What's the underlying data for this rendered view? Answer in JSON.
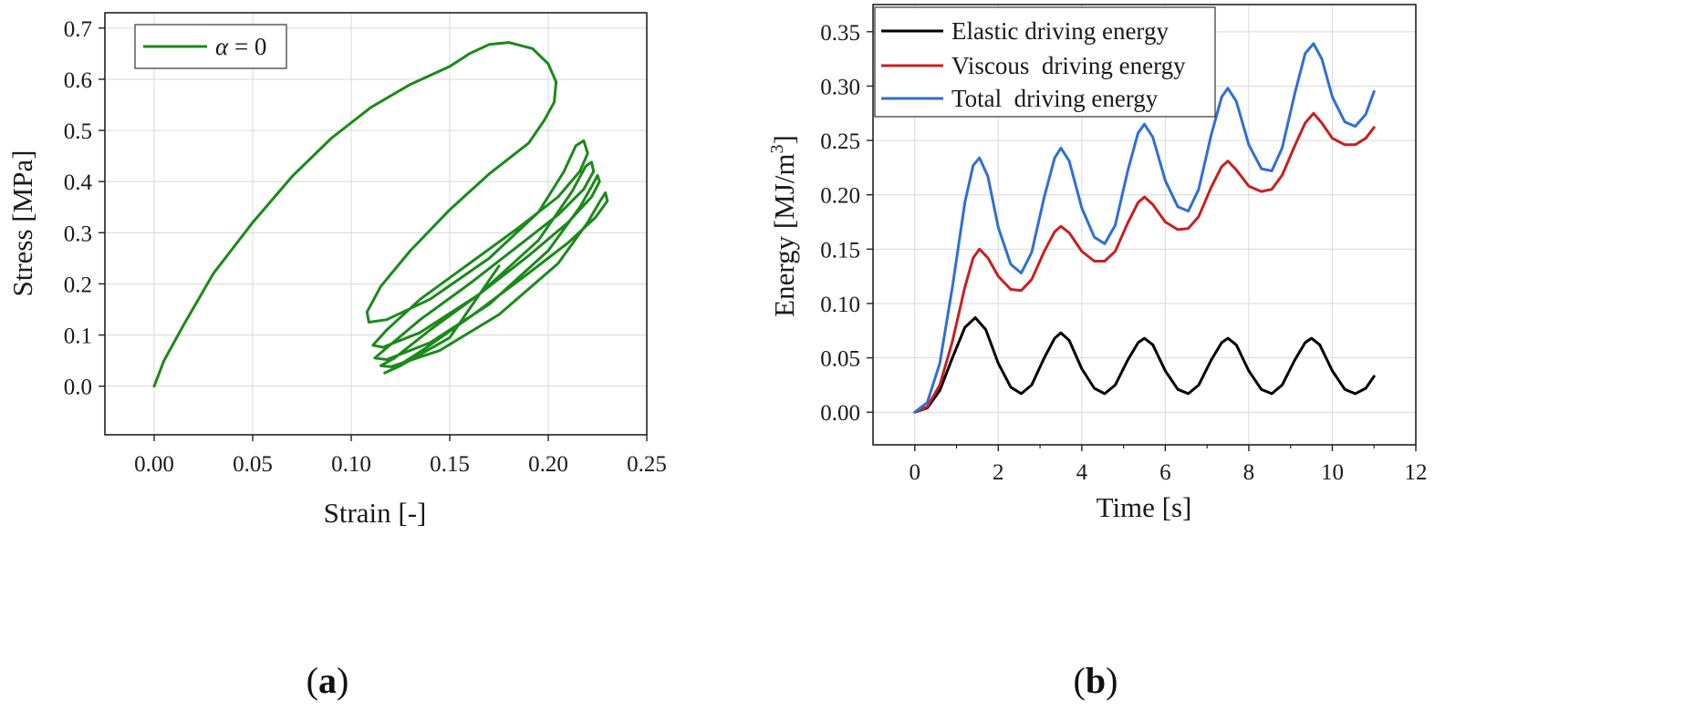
{
  "panel_a": {
    "label_open": "(",
    "label_letter": "a",
    "label_close": ")"
  },
  "panel_b": {
    "label_open": "(",
    "label_letter": "b",
    "label_close": ")"
  },
  "chart_data": [
    {
      "type": "line",
      "xlabel": "Strain [-]",
      "ylabel": "Stress [MPa]",
      "xlim": [
        -0.025,
        0.25
      ],
      "ylim": [
        -0.095,
        0.73
      ],
      "xticks": [
        0.0,
        0.05,
        0.1,
        0.15,
        0.2,
        0.25
      ],
      "xtick_labels": [
        "0.00",
        "0.05",
        "0.10",
        "0.15",
        "0.20",
        "0.25"
      ],
      "yticks": [
        0.0,
        0.1,
        0.2,
        0.3,
        0.4,
        0.5,
        0.6,
        0.7
      ],
      "ytick_labels": [
        "0.0",
        "0.1",
        "0.2",
        "0.3",
        "0.4",
        "0.5",
        "0.6",
        "0.7"
      ],
      "grid": true,
      "legend_position": "top-left",
      "series": [
        {
          "name": "α = 0",
          "legend_symbol": "α",
          "legend_rest": " = 0",
          "color": "#1a8a1a",
          "points": [
            [
              0.0,
              0.0
            ],
            [
              0.005,
              0.05
            ],
            [
              0.015,
              0.12
            ],
            [
              0.03,
              0.22
            ],
            [
              0.05,
              0.32
            ],
            [
              0.07,
              0.41
            ],
            [
              0.09,
              0.485
            ],
            [
              0.11,
              0.545
            ],
            [
              0.13,
              0.59
            ],
            [
              0.15,
              0.625
            ],
            [
              0.16,
              0.65
            ],
            [
              0.17,
              0.668
            ],
            [
              0.18,
              0.672
            ],
            [
              0.192,
              0.66
            ],
            [
              0.2,
              0.63
            ],
            [
              0.204,
              0.595
            ],
            [
              0.203,
              0.555
            ],
            [
              0.198,
              0.52
            ],
            [
              0.19,
              0.475
            ],
            [
              0.17,
              0.415
            ],
            [
              0.15,
              0.345
            ],
            [
              0.13,
              0.265
            ],
            [
              0.115,
              0.195
            ],
            [
              0.108,
              0.145
            ],
            [
              0.109,
              0.125
            ],
            [
              0.118,
              0.13
            ],
            [
              0.14,
              0.17
            ],
            [
              0.17,
              0.25
            ],
            [
              0.195,
              0.34
            ],
            [
              0.208,
              0.42
            ],
            [
              0.214,
              0.47
            ],
            [
              0.218,
              0.48
            ],
            [
              0.22,
              0.455
            ],
            [
              0.216,
              0.42
            ],
            [
              0.205,
              0.37
            ],
            [
              0.185,
              0.31
            ],
            [
              0.16,
              0.24
            ],
            [
              0.135,
              0.17
            ],
            [
              0.118,
              0.11
            ],
            [
              0.111,
              0.08
            ],
            [
              0.116,
              0.076
            ],
            [
              0.135,
              0.105
            ],
            [
              0.165,
              0.18
            ],
            [
              0.195,
              0.285
            ],
            [
              0.212,
              0.38
            ],
            [
              0.219,
              0.43
            ],
            [
              0.222,
              0.438
            ],
            [
              0.223,
              0.42
            ],
            [
              0.218,
              0.385
            ],
            [
              0.205,
              0.335
            ],
            [
              0.185,
              0.275
            ],
            [
              0.16,
              0.2
            ],
            [
              0.135,
              0.13
            ],
            [
              0.118,
              0.075
            ],
            [
              0.112,
              0.055
            ],
            [
              0.118,
              0.052
            ],
            [
              0.14,
              0.085
            ],
            [
              0.17,
              0.16
            ],
            [
              0.2,
              0.265
            ],
            [
              0.216,
              0.35
            ],
            [
              0.222,
              0.39
            ],
            [
              0.225,
              0.412
            ],
            [
              0.226,
              0.4
            ],
            [
              0.222,
              0.37
            ],
            [
              0.21,
              0.32
            ],
            [
              0.19,
              0.255
            ],
            [
              0.165,
              0.18
            ],
            [
              0.14,
              0.11
            ],
            [
              0.122,
              0.055
            ],
            [
              0.115,
              0.04
            ],
            [
              0.12,
              0.038
            ],
            [
              0.145,
              0.07
            ],
            [
              0.175,
              0.14
            ],
            [
              0.205,
              0.24
            ],
            [
              0.22,
              0.32
            ],
            [
              0.226,
              0.36
            ],
            [
              0.229,
              0.378
            ],
            [
              0.23,
              0.362
            ],
            [
              0.224,
              0.33
            ],
            [
              0.21,
              0.28
            ],
            [
              0.188,
              0.215
            ],
            [
              0.162,
              0.14
            ],
            [
              0.138,
              0.075
            ],
            [
              0.122,
              0.035
            ],
            [
              0.117,
              0.026
            ],
            [
              0.125,
              0.04
            ],
            [
              0.15,
              0.095
            ],
            [
              0.175,
              0.235
            ]
          ]
        }
      ]
    },
    {
      "type": "line",
      "xlabel": "Time [s]",
      "ylabel": "Energy [MJ/m³]",
      "ylabel_main": "Energy [MJ/m",
      "ylabel_sup": "3",
      "ylabel_end": "]",
      "xlim": [
        -1,
        12
      ],
      "ylim": [
        -0.03,
        0.375
      ],
      "xticks": [
        0,
        2,
        4,
        6,
        8,
        10,
        12
      ],
      "xtick_labels": [
        "0",
        "2",
        "4",
        "6",
        "8",
        "10",
        "12"
      ],
      "yticks": [
        0.0,
        0.05,
        0.1,
        0.15,
        0.2,
        0.25,
        0.3,
        0.35
      ],
      "ytick_labels": [
        "0.00",
        "0.05",
        "0.10",
        "0.15",
        "0.20",
        "0.25",
        "0.30",
        "0.35"
      ],
      "grid": true,
      "legend_position": "top-left",
      "series": [
        {
          "name": "Elastic driving energy",
          "color": "#000000",
          "points": [
            [
              0.0,
              0.0
            ],
            [
              0.3,
              0.004
            ],
            [
              0.6,
              0.02
            ],
            [
              0.9,
              0.05
            ],
            [
              1.2,
              0.078
            ],
            [
              1.45,
              0.087
            ],
            [
              1.7,
              0.076
            ],
            [
              2.0,
              0.045
            ],
            [
              2.3,
              0.023
            ],
            [
              2.55,
              0.017
            ],
            [
              2.8,
              0.025
            ],
            [
              3.1,
              0.05
            ],
            [
              3.35,
              0.068
            ],
            [
              3.5,
              0.073
            ],
            [
              3.7,
              0.066
            ],
            [
              4.0,
              0.04
            ],
            [
              4.3,
              0.022
            ],
            [
              4.55,
              0.017
            ],
            [
              4.8,
              0.025
            ],
            [
              5.1,
              0.048
            ],
            [
              5.35,
              0.064
            ],
            [
              5.5,
              0.068
            ],
            [
              5.7,
              0.062
            ],
            [
              6.0,
              0.038
            ],
            [
              6.3,
              0.021
            ],
            [
              6.55,
              0.017
            ],
            [
              6.8,
              0.025
            ],
            [
              7.1,
              0.048
            ],
            [
              7.35,
              0.064
            ],
            [
              7.5,
              0.068
            ],
            [
              7.7,
              0.062
            ],
            [
              8.0,
              0.038
            ],
            [
              8.3,
              0.021
            ],
            [
              8.55,
              0.017
            ],
            [
              8.8,
              0.025
            ],
            [
              9.1,
              0.048
            ],
            [
              9.35,
              0.064
            ],
            [
              9.5,
              0.068
            ],
            [
              9.7,
              0.062
            ],
            [
              10.0,
              0.038
            ],
            [
              10.3,
              0.021
            ],
            [
              10.55,
              0.017
            ],
            [
              10.8,
              0.022
            ],
            [
              11.0,
              0.033
            ]
          ]
        },
        {
          "name": "Viscous  driving energy",
          "color": "#c8201e",
          "points": [
            [
              0.0,
              0.0
            ],
            [
              0.3,
              0.005
            ],
            [
              0.6,
              0.025
            ],
            [
              0.9,
              0.065
            ],
            [
              1.2,
              0.115
            ],
            [
              1.4,
              0.142
            ],
            [
              1.55,
              0.15
            ],
            [
              1.75,
              0.142
            ],
            [
              2.0,
              0.125
            ],
            [
              2.3,
              0.113
            ],
            [
              2.55,
              0.112
            ],
            [
              2.8,
              0.122
            ],
            [
              3.1,
              0.148
            ],
            [
              3.35,
              0.166
            ],
            [
              3.5,
              0.171
            ],
            [
              3.7,
              0.165
            ],
            [
              4.0,
              0.148
            ],
            [
              4.3,
              0.139
            ],
            [
              4.55,
              0.139
            ],
            [
              4.8,
              0.148
            ],
            [
              5.1,
              0.174
            ],
            [
              5.35,
              0.193
            ],
            [
              5.5,
              0.198
            ],
            [
              5.7,
              0.191
            ],
            [
              6.0,
              0.175
            ],
            [
              6.3,
              0.168
            ],
            [
              6.55,
              0.169
            ],
            [
              6.8,
              0.18
            ],
            [
              7.1,
              0.207
            ],
            [
              7.35,
              0.226
            ],
            [
              7.5,
              0.231
            ],
            [
              7.7,
              0.223
            ],
            [
              8.0,
              0.208
            ],
            [
              8.3,
              0.203
            ],
            [
              8.55,
              0.205
            ],
            [
              8.8,
              0.218
            ],
            [
              9.1,
              0.245
            ],
            [
              9.35,
              0.266
            ],
            [
              9.55,
              0.275
            ],
            [
              9.75,
              0.266
            ],
            [
              10.0,
              0.252
            ],
            [
              10.3,
              0.246
            ],
            [
              10.55,
              0.246
            ],
            [
              10.8,
              0.252
            ],
            [
              11.0,
              0.262
            ]
          ]
        },
        {
          "name": "Total  driving energy",
          "color": "#2f6fd6",
          "points": [
            [
              0.0,
              0.0
            ],
            [
              0.3,
              0.009
            ],
            [
              0.6,
              0.045
            ],
            [
              0.9,
              0.115
            ],
            [
              1.2,
              0.193
            ],
            [
              1.4,
              0.227
            ],
            [
              1.55,
              0.234
            ],
            [
              1.75,
              0.217
            ],
            [
              2.0,
              0.17
            ],
            [
              2.3,
              0.136
            ],
            [
              2.55,
              0.128
            ],
            [
              2.8,
              0.147
            ],
            [
              3.1,
              0.198
            ],
            [
              3.35,
              0.234
            ],
            [
              3.5,
              0.243
            ],
            [
              3.7,
              0.231
            ],
            [
              4.0,
              0.188
            ],
            [
              4.3,
              0.161
            ],
            [
              4.55,
              0.155
            ],
            [
              4.8,
              0.172
            ],
            [
              5.1,
              0.222
            ],
            [
              5.35,
              0.257
            ],
            [
              5.5,
              0.265
            ],
            [
              5.7,
              0.253
            ],
            [
              6.0,
              0.213
            ],
            [
              6.3,
              0.189
            ],
            [
              6.55,
              0.185
            ],
            [
              6.8,
              0.205
            ],
            [
              7.1,
              0.255
            ],
            [
              7.35,
              0.29
            ],
            [
              7.5,
              0.298
            ],
            [
              7.7,
              0.286
            ],
            [
              8.0,
              0.246
            ],
            [
              8.3,
              0.224
            ],
            [
              8.55,
              0.222
            ],
            [
              8.8,
              0.243
            ],
            [
              9.1,
              0.293
            ],
            [
              9.35,
              0.33
            ],
            [
              9.55,
              0.339
            ],
            [
              9.75,
              0.325
            ],
            [
              10.0,
              0.29
            ],
            [
              10.3,
              0.267
            ],
            [
              10.55,
              0.263
            ],
            [
              10.8,
              0.274
            ],
            [
              11.0,
              0.295
            ]
          ]
        }
      ]
    }
  ]
}
